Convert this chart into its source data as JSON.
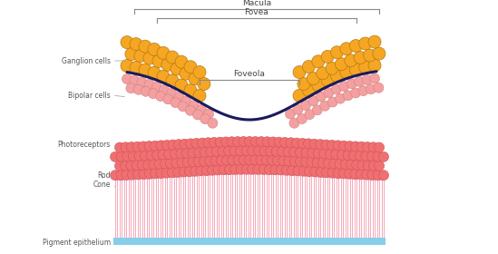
{
  "bg_color": "#ffffff",
  "title_macula": "Macula",
  "title_fovea": "Fovea",
  "title_foveola": "Foveola",
  "label_ganglion": "Ganglion cells",
  "label_bipolar": "Bipolar cells",
  "label_photoreceptors": "Photoreceptors",
  "label_rod": "Rod",
  "label_cone": "Cone",
  "label_pigment": "Pigment epithelium",
  "ganglion_color": "#F5A623",
  "ganglion_edge": "#b87a10",
  "bipolar_color": "#F4A0A0",
  "bipolar_edge": "#d08080",
  "photoreceptor_color": "#F07070",
  "photoreceptor_edge": "#d05060",
  "rod_line_color": "#F4A0B0",
  "rod_sep_color": "#cc6677",
  "pigment_color": "#87CEEB",
  "curve_color": "#1a1a5e",
  "bracket_color": "#888888",
  "label_color": "#555555",
  "label_fontsize": 5.5,
  "bracket_fontsize": 6.5,
  "figw": 5.49,
  "figh": 2.8,
  "dpi": 100
}
